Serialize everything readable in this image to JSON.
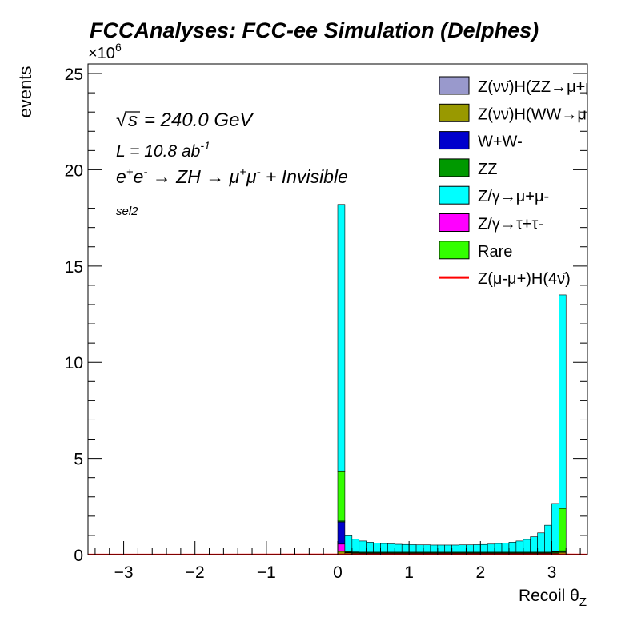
{
  "title": "FCCAnalyses: FCC-ee Simulation (Delphes)",
  "annotations": {
    "energy_prefix": "√s",
    "energy": "= 240.0 GeV",
    "lumi": "L = 10.8 ab",
    "lumi_sup": "-1",
    "process": "e+e- → ZH → μ+μ- + Invisible",
    "selection": "sel2"
  },
  "chart_data": {
    "type": "bar",
    "stacked": true,
    "xlabel": "Recoil θ_Z",
    "ylabel": "events",
    "y_multiplier": "×10^6",
    "xlim": [
      -3.5,
      3.5
    ],
    "ylim": [
      0,
      25.5
    ],
    "x_ticks": [
      -3,
      -2,
      -1,
      0,
      1,
      2,
      3
    ],
    "y_ticks": [
      0,
      5,
      10,
      15,
      20,
      25
    ],
    "bin_width": 0.1,
    "grid": false,
    "legend_position": "top-right",
    "bins": [
      0.0,
      0.1,
      0.2,
      0.3,
      0.4,
      0.5,
      0.6,
      0.7,
      0.8,
      0.9,
      1.0,
      1.1,
      1.2,
      1.3,
      1.4,
      1.5,
      1.6,
      1.7,
      1.8,
      1.9,
      2.0,
      2.1,
      2.2,
      2.3,
      2.4,
      2.5,
      2.6,
      2.7,
      2.8,
      2.9,
      3.0,
      3.1
    ],
    "series": [
      {
        "name": "Z(νν̄)H(ZZ→μ+μ-ν+ν-)",
        "color": "#9999cc",
        "values": [
          0.02,
          0.01,
          0.01,
          0.01,
          0.01,
          0.01,
          0.01,
          0.01,
          0.01,
          0.01,
          0.01,
          0.01,
          0.01,
          0.01,
          0.01,
          0.01,
          0.01,
          0.01,
          0.01,
          0.01,
          0.01,
          0.01,
          0.01,
          0.01,
          0.01,
          0.01,
          0.01,
          0.01,
          0.01,
          0.01,
          0.01,
          0.02
        ]
      },
      {
        "name": "Z(νν̄)H(WW→μ+νμ-ν)",
        "color": "#999900",
        "values": [
          0.15,
          0.08,
          0.06,
          0.05,
          0.05,
          0.05,
          0.05,
          0.05,
          0.05,
          0.05,
          0.05,
          0.05,
          0.05,
          0.05,
          0.05,
          0.05,
          0.05,
          0.05,
          0.05,
          0.05,
          0.05,
          0.05,
          0.05,
          0.05,
          0.05,
          0.05,
          0.05,
          0.05,
          0.05,
          0.05,
          0.06,
          0.1
        ]
      },
      {
        "name": "Z/γ→τ+τ-",
        "color": "#ff00ff",
        "values": [
          0.38,
          0.02,
          0.01,
          0.01,
          0.01,
          0.01,
          0.01,
          0.01,
          0.01,
          0.01,
          0.01,
          0.01,
          0.01,
          0.01,
          0.01,
          0.01,
          0.01,
          0.01,
          0.01,
          0.01,
          0.01,
          0.01,
          0.01,
          0.01,
          0.01,
          0.01,
          0.01,
          0.01,
          0.01,
          0.01,
          0.01,
          0.01
        ]
      },
      {
        "name": "W+W-",
        "color": "#0000cc",
        "values": [
          1.15,
          0.01,
          0.01,
          0.01,
          0.01,
          0.01,
          0.01,
          0.01,
          0.01,
          0.01,
          0.01,
          0.01,
          0.01,
          0.01,
          0.01,
          0.01,
          0.01,
          0.01,
          0.01,
          0.01,
          0.01,
          0.01,
          0.01,
          0.01,
          0.01,
          0.01,
          0.01,
          0.01,
          0.01,
          0.01,
          0.01,
          0.01
        ]
      },
      {
        "name": "ZZ",
        "color": "#009900",
        "values": [
          0.05,
          0.04,
          0.04,
          0.04,
          0.04,
          0.04,
          0.04,
          0.04,
          0.04,
          0.04,
          0.04,
          0.04,
          0.04,
          0.04,
          0.04,
          0.04,
          0.04,
          0.04,
          0.04,
          0.04,
          0.04,
          0.04,
          0.04,
          0.04,
          0.04,
          0.04,
          0.04,
          0.04,
          0.04,
          0.04,
          0.05,
          0.06
        ]
      },
      {
        "name": "Rare",
        "color": "#33ff00",
        "values": [
          2.6,
          0.02,
          0.01,
          0.01,
          0.01,
          0.01,
          0.01,
          0.01,
          0.01,
          0.01,
          0.01,
          0.01,
          0.01,
          0.01,
          0.01,
          0.01,
          0.01,
          0.01,
          0.01,
          0.01,
          0.01,
          0.01,
          0.01,
          0.01,
          0.01,
          0.01,
          0.01,
          0.01,
          0.01,
          0.01,
          0.02,
          2.2
        ]
      },
      {
        "name": "Z/γ→μ+μ-",
        "color": "#00ffff",
        "values": [
          13.85,
          0.8,
          0.66,
          0.58,
          0.52,
          0.48,
          0.45,
          0.43,
          0.41,
          0.4,
          0.39,
          0.38,
          0.38,
          0.37,
          0.37,
          0.37,
          0.37,
          0.38,
          0.38,
          0.39,
          0.4,
          0.42,
          0.45,
          0.48,
          0.52,
          0.58,
          0.66,
          0.8,
          1.0,
          1.4,
          2.5,
          11.1
        ]
      },
      {
        "name": "Z(μ-μ+)H(4ν̄)",
        "color": "#ff0000",
        "line": true,
        "values": [
          0.01,
          0.01,
          0.01,
          0.01,
          0.01,
          0.01,
          0.01,
          0.01,
          0.01,
          0.01,
          0.01,
          0.01,
          0.01,
          0.01,
          0.01,
          0.01,
          0.01,
          0.01,
          0.01,
          0.01,
          0.01,
          0.01,
          0.01,
          0.01,
          0.01,
          0.01,
          0.01,
          0.01,
          0.01,
          0.01,
          0.01,
          0.01
        ]
      }
    ],
    "legend": [
      {
        "label": "Z(νν̄)H(ZZ→μ+μ-ν+ν-)",
        "color": "#9999cc",
        "kind": "box"
      },
      {
        "label": "Z(νν̄)H(WW→μ+νμ-ν)",
        "color": "#999900",
        "kind": "box"
      },
      {
        "label": "W+W-",
        "color": "#0000cc",
        "kind": "box"
      },
      {
        "label": "ZZ",
        "color": "#009900",
        "kind": "box"
      },
      {
        "label": "Z/γ→μ+μ-",
        "color": "#00ffff",
        "kind": "box"
      },
      {
        "label": "Z/γ→τ+τ-",
        "color": "#ff00ff",
        "kind": "box"
      },
      {
        "label": "Rare",
        "color": "#33ff00",
        "kind": "box"
      },
      {
        "label": "Z(μ-μ+)H(4ν̄)",
        "color": "#ff0000",
        "kind": "line"
      }
    ]
  }
}
